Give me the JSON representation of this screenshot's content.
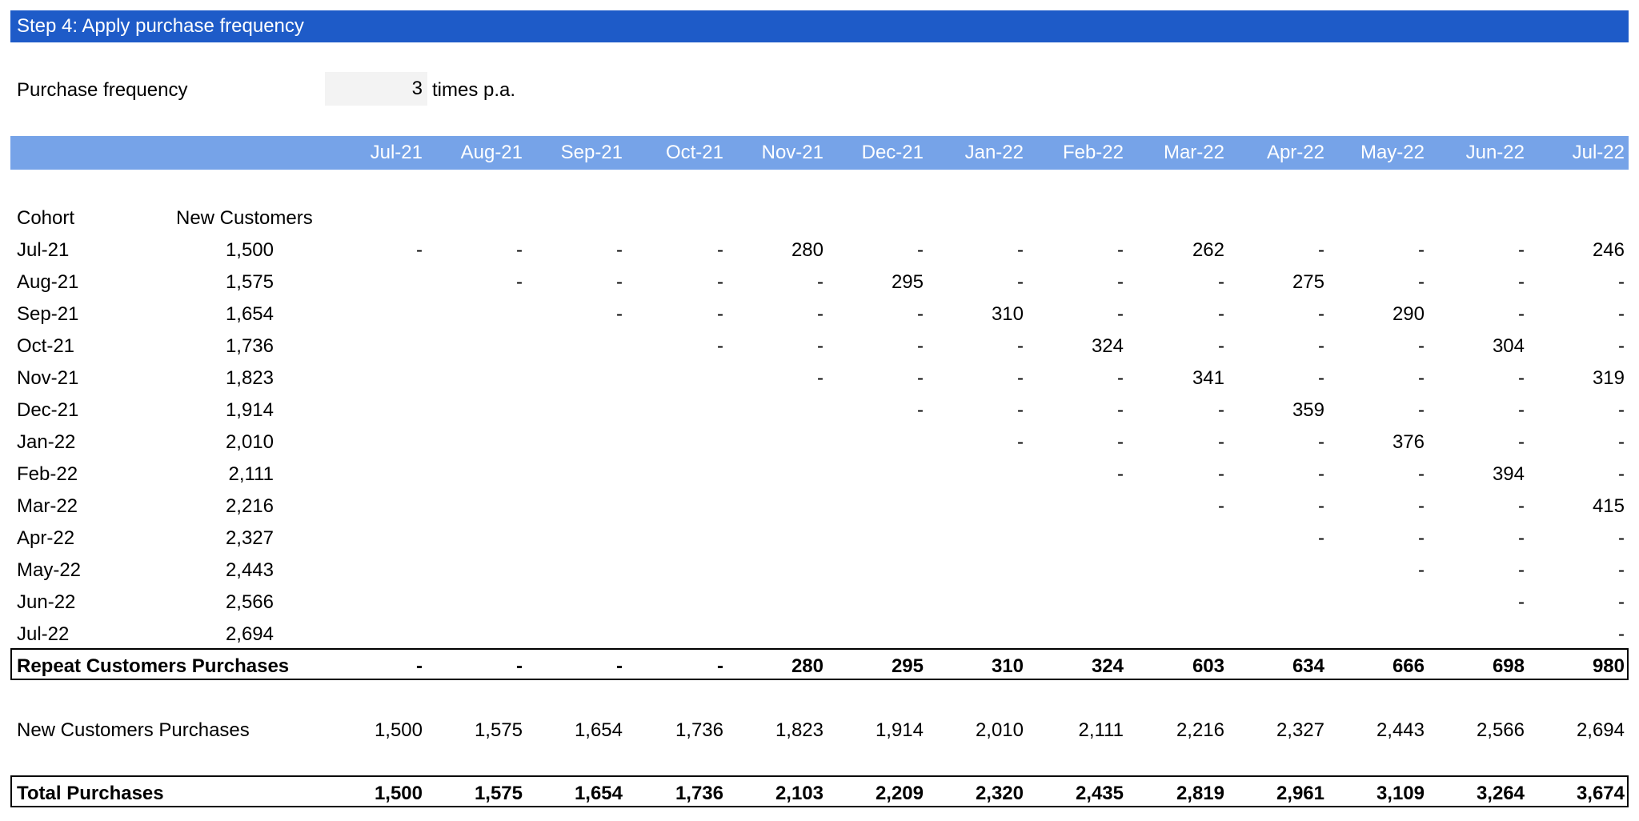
{
  "banner": {
    "title": "Step 4: Apply purchase frequency"
  },
  "frequency": {
    "label": "Purchase frequency",
    "value": "3",
    "unit": "times p.a."
  },
  "months": [
    "Jul-21",
    "Aug-21",
    "Sep-21",
    "Oct-21",
    "Nov-21",
    "Dec-21",
    "Jan-22",
    "Feb-22",
    "Mar-22",
    "Apr-22",
    "May-22",
    "Jun-22",
    "Jul-22"
  ],
  "cohort_header": {
    "cohort": "Cohort",
    "new_customers": "New Customers"
  },
  "cohorts": [
    {
      "label": "Jul-21",
      "new": "1,500",
      "values": [
        "-",
        "-",
        "-",
        "-",
        "280",
        "-",
        "-",
        "-",
        "262",
        "-",
        "-",
        "-",
        "246"
      ]
    },
    {
      "label": "Aug-21",
      "new": "1,575",
      "values": [
        "",
        "-",
        "-",
        "-",
        "-",
        "295",
        "-",
        "-",
        "-",
        "275",
        "-",
        "-",
        "-"
      ]
    },
    {
      "label": "Sep-21",
      "new": "1,654",
      "values": [
        "",
        "",
        "-",
        "-",
        "-",
        "-",
        "310",
        "-",
        "-",
        "-",
        "290",
        "-",
        "-"
      ]
    },
    {
      "label": "Oct-21",
      "new": "1,736",
      "values": [
        "",
        "",
        "",
        "-",
        "-",
        "-",
        "-",
        "324",
        "-",
        "-",
        "-",
        "304",
        "-"
      ]
    },
    {
      "label": "Nov-21",
      "new": "1,823",
      "values": [
        "",
        "",
        "",
        "",
        "-",
        "-",
        "-",
        "-",
        "341",
        "-",
        "-",
        "-",
        "319"
      ]
    },
    {
      "label": "Dec-21",
      "new": "1,914",
      "values": [
        "",
        "",
        "",
        "",
        "",
        "-",
        "-",
        "-",
        "-",
        "359",
        "-",
        "-",
        "-"
      ]
    },
    {
      "label": "Jan-22",
      "new": "2,010",
      "values": [
        "",
        "",
        "",
        "",
        "",
        "",
        "-",
        "-",
        "-",
        "-",
        "376",
        "-",
        "-"
      ]
    },
    {
      "label": "Feb-22",
      "new": "2,111",
      "values": [
        "",
        "",
        "",
        "",
        "",
        "",
        "",
        "-",
        "-",
        "-",
        "-",
        "394",
        "-"
      ]
    },
    {
      "label": "Mar-22",
      "new": "2,216",
      "values": [
        "",
        "",
        "",
        "",
        "",
        "",
        "",
        "",
        "-",
        "-",
        "-",
        "-",
        "415"
      ]
    },
    {
      "label": "Apr-22",
      "new": "2,327",
      "values": [
        "",
        "",
        "",
        "",
        "",
        "",
        "",
        "",
        "",
        "-",
        "-",
        "-",
        "-"
      ]
    },
    {
      "label": "May-22",
      "new": "2,443",
      "values": [
        "",
        "",
        "",
        "",
        "",
        "",
        "",
        "",
        "",
        "",
        "-",
        "-",
        "-"
      ]
    },
    {
      "label": "Jun-22",
      "new": "2,566",
      "values": [
        "",
        "",
        "",
        "",
        "",
        "",
        "",
        "",
        "",
        "",
        "",
        "-",
        "-"
      ]
    },
    {
      "label": "Jul-22",
      "new": "2,694",
      "values": [
        "",
        "",
        "",
        "",
        "",
        "",
        "",
        "",
        "",
        "",
        "",
        "",
        "-"
      ]
    }
  ],
  "repeat": {
    "label": "Repeat Customers Purchases",
    "values": [
      "-",
      "-",
      "-",
      "-",
      "280",
      "295",
      "310",
      "324",
      "603",
      "634",
      "666",
      "698",
      "980"
    ]
  },
  "new_purchases": {
    "label": "New Customers Purchases",
    "values": [
      "1,500",
      "1,575",
      "1,654",
      "1,736",
      "1,823",
      "1,914",
      "2,010",
      "2,111",
      "2,216",
      "2,327",
      "2,443",
      "2,566",
      "2,694"
    ]
  },
  "total": {
    "label": "Total Purchases",
    "values": [
      "1,500",
      "1,575",
      "1,654",
      "1,736",
      "2,103",
      "2,209",
      "2,320",
      "2,435",
      "2,819",
      "2,961",
      "3,109",
      "3,264",
      "3,674"
    ]
  }
}
